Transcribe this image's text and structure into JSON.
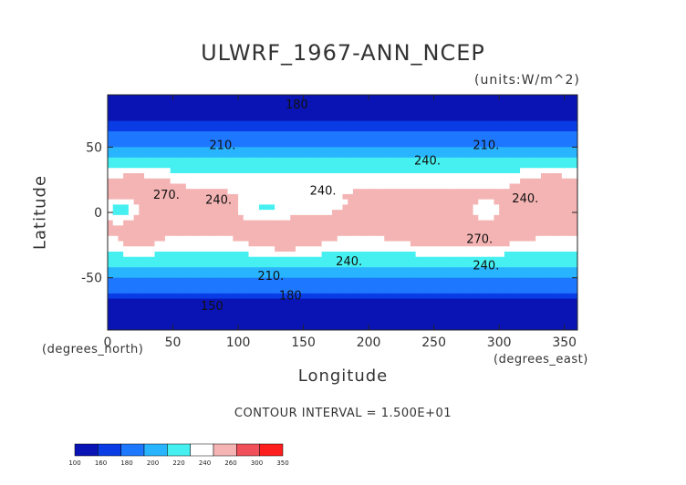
{
  "chart_data": {
    "type": "heatmap",
    "title": "ULWRF_1967-ANN_NCEP",
    "units": "(units:W/m^2)",
    "xlabel": "Longitude",
    "ylabel": "Latitude",
    "x_unit_note": "(degrees_east)",
    "y_unit_note": "(degrees_north)",
    "xlim": [
      0,
      360
    ],
    "ylim": [
      -90,
      90
    ],
    "x_ticks": [
      0,
      50,
      100,
      150,
      200,
      250,
      300,
      350
    ],
    "y_ticks": [
      50,
      0,
      -50
    ],
    "contour_interval": "CONTOUR INTERVAL = 1.500E+01",
    "colorbar": {
      "levels": [
        100,
        160,
        180,
        200,
        220,
        240,
        260,
        300,
        350
      ],
      "colors": [
        "#0a14b4",
        "#0a3ce6",
        "#1e78ff",
        "#28b4ff",
        "#46f0f0",
        "#ffffff",
        "#f5b4b4",
        "#f0505a",
        "#ff1e1e"
      ]
    },
    "contour_labels": [
      {
        "text": "180",
        "lon": 145,
        "lat": 83
      },
      {
        "text": "210.",
        "lon": 88,
        "lat": 52
      },
      {
        "text": "210.",
        "lon": 290,
        "lat": 52
      },
      {
        "text": "240.",
        "lon": 245,
        "lat": 40
      },
      {
        "text": "270.",
        "lon": 45,
        "lat": 14
      },
      {
        "text": "240.",
        "lon": 85,
        "lat": 10
      },
      {
        "text": "240.",
        "lon": 165,
        "lat": 17
      },
      {
        "text": "240.",
        "lon": 320,
        "lat": 11
      },
      {
        "text": "240.",
        "lon": 185,
        "lat": -37
      },
      {
        "text": "270.",
        "lon": 285,
        "lat": -20
      },
      {
        "text": "240.",
        "lon": 290,
        "lat": -40
      },
      {
        "text": "210.",
        "lon": 125,
        "lat": -48
      },
      {
        "text": "180",
        "lon": 140,
        "lat": -63
      },
      {
        "text": "150",
        "lon": 80,
        "lat": -71
      }
    ]
  }
}
